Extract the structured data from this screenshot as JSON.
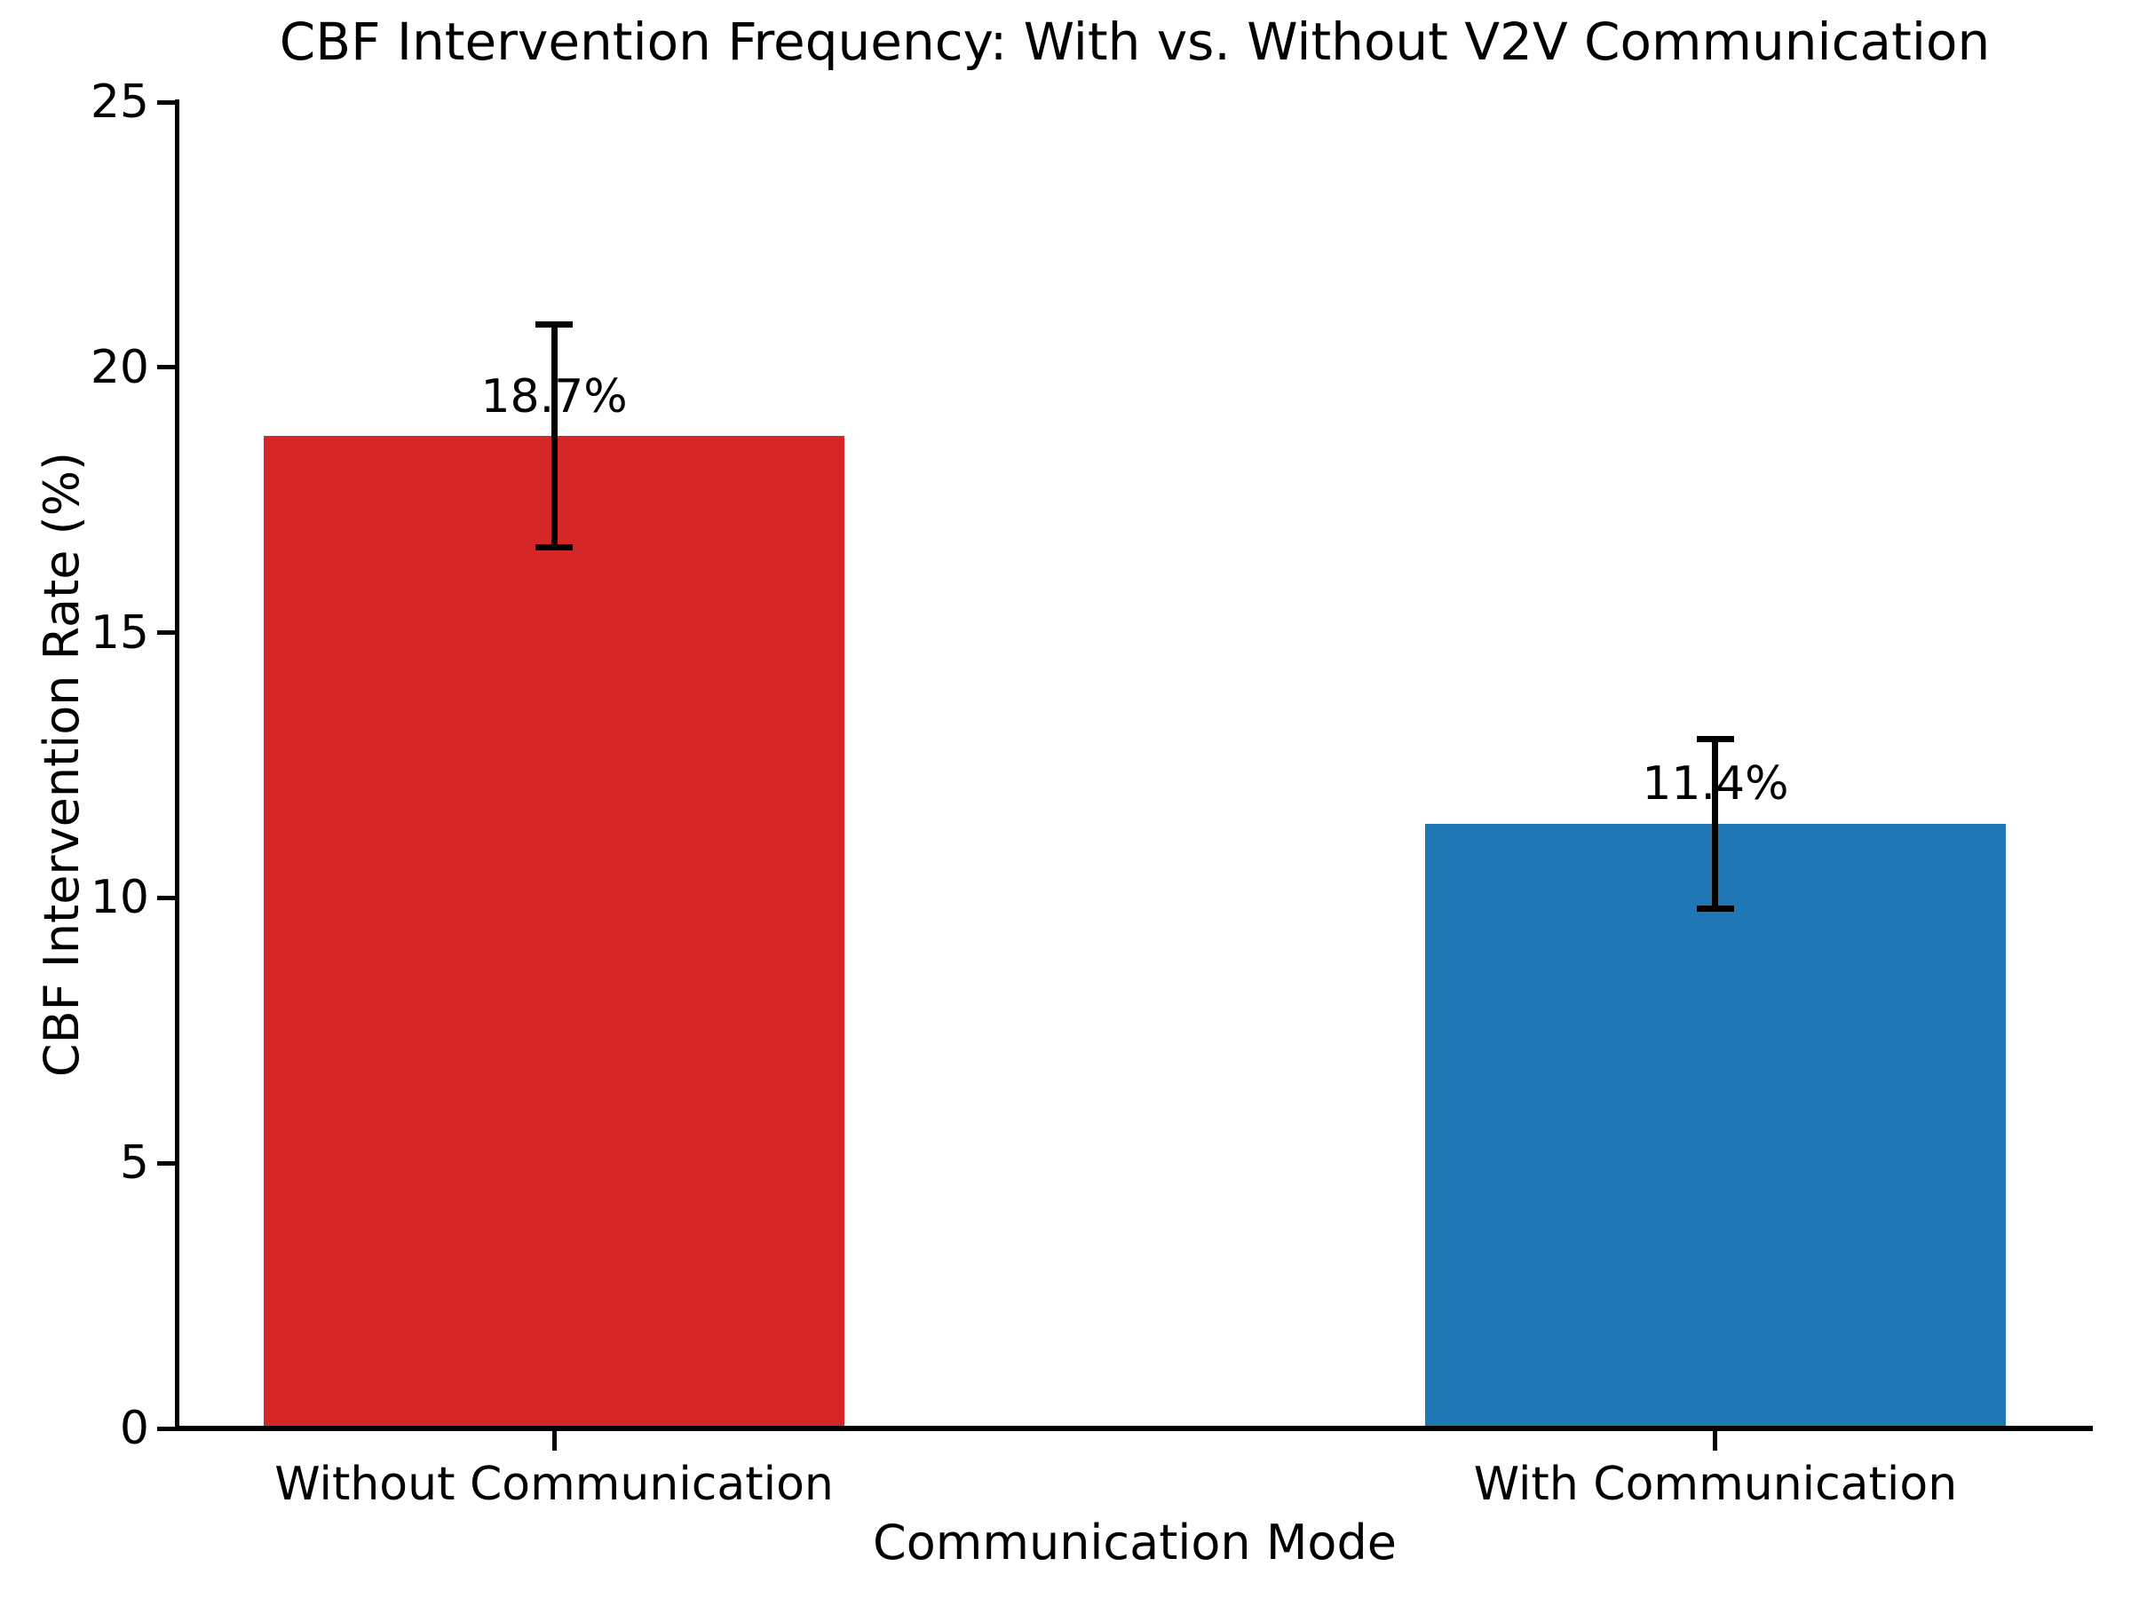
{
  "title": "CBF Intervention Frequency: With vs. Without V2V Communication",
  "chart_data": {
    "type": "bar",
    "title": "CBF Intervention Frequency: With vs. Without V2V Communication",
    "xlabel": "Communication Mode",
    "ylabel": "CBF Intervention Rate (%)",
    "categories": [
      "Without Communication",
      "With Communication"
    ],
    "values": [
      18.7,
      11.4
    ],
    "errors": [
      2.1,
      1.6
    ],
    "value_labels": [
      "18.7%",
      "11.4%"
    ],
    "bar_colors": [
      "#d62728",
      "#1f77b4"
    ],
    "ylim": [
      0,
      25
    ],
    "yticks": [
      0,
      5,
      10,
      15,
      20,
      25
    ],
    "grid": false,
    "legend": null,
    "background_color": "#ffffff",
    "text_color": "#000000"
  }
}
